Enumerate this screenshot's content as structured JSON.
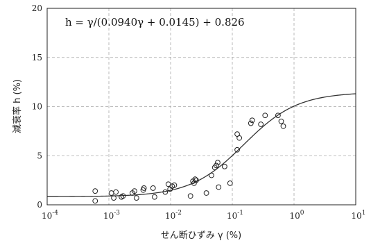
{
  "chart_data": {
    "type": "scatter",
    "title": "",
    "annotation": "h = γ/(0.0940γ + 0.0145) + 0.826",
    "xlabel": "せん断ひずみ γ (%)",
    "ylabel": "減衰率 h (%)",
    "x_scale": "log",
    "xlim": [
      0.0001,
      10
    ],
    "ylim": [
      0,
      20
    ],
    "x_ticks": [
      {
        "value": 0.0001,
        "base": "10",
        "exp": "-4"
      },
      {
        "value": 0.001,
        "base": "10",
        "exp": "-3"
      },
      {
        "value": 0.01,
        "base": "10",
        "exp": "-2"
      },
      {
        "value": 0.1,
        "base": "10",
        "exp": "-1"
      },
      {
        "value": 1,
        "base": "10",
        "exp": "0"
      },
      {
        "value": 10,
        "base": "10",
        "exp": "1"
      }
    ],
    "y_ticks": [
      0,
      5,
      10,
      15,
      20
    ],
    "grid": true,
    "fit_curve": {
      "a": 0.094,
      "b": 0.0145,
      "c": 0.826
    },
    "points": [
      {
        "x": 0.0006,
        "y": 1.4
      },
      {
        "x": 0.0006,
        "y": 0.4
      },
      {
        "x": 0.0011,
        "y": 1.2
      },
      {
        "x": 0.0012,
        "y": 0.7
      },
      {
        "x": 0.0013,
        "y": 1.3
      },
      {
        "x": 0.0016,
        "y": 0.8
      },
      {
        "x": 0.0017,
        "y": 0.9
      },
      {
        "x": 0.0024,
        "y": 1.2
      },
      {
        "x": 0.0026,
        "y": 1.4
      },
      {
        "x": 0.0028,
        "y": 0.7
      },
      {
        "x": 0.0036,
        "y": 1.5
      },
      {
        "x": 0.0037,
        "y": 1.7
      },
      {
        "x": 0.0052,
        "y": 1.7
      },
      {
        "x": 0.0055,
        "y": 0.8
      },
      {
        "x": 0.0082,
        "y": 1.3
      },
      {
        "x": 0.0092,
        "y": 2.1
      },
      {
        "x": 0.0098,
        "y": 1.6
      },
      {
        "x": 0.0106,
        "y": 1.9
      },
      {
        "x": 0.0115,
        "y": 2.0
      },
      {
        "x": 0.021,
        "y": 0.9
      },
      {
        "x": 0.023,
        "y": 2.4
      },
      {
        "x": 0.024,
        "y": 2.2
      },
      {
        "x": 0.025,
        "y": 2.6
      },
      {
        "x": 0.026,
        "y": 2.5
      },
      {
        "x": 0.038,
        "y": 1.2
      },
      {
        "x": 0.046,
        "y": 3.0
      },
      {
        "x": 0.052,
        "y": 3.8
      },
      {
        "x": 0.055,
        "y": 4.0
      },
      {
        "x": 0.058,
        "y": 4.3
      },
      {
        "x": 0.06,
        "y": 1.8
      },
      {
        "x": 0.075,
        "y": 3.9
      },
      {
        "x": 0.092,
        "y": 2.2
      },
      {
        "x": 0.12,
        "y": 5.6
      },
      {
        "x": 0.12,
        "y": 7.2
      },
      {
        "x": 0.13,
        "y": 6.8
      },
      {
        "x": 0.2,
        "y": 8.3
      },
      {
        "x": 0.21,
        "y": 8.6
      },
      {
        "x": 0.29,
        "y": 8.2
      },
      {
        "x": 0.34,
        "y": 9.1
      },
      {
        "x": 0.55,
        "y": 9.1
      },
      {
        "x": 0.62,
        "y": 8.5
      },
      {
        "x": 0.67,
        "y": 8.0
      }
    ]
  }
}
